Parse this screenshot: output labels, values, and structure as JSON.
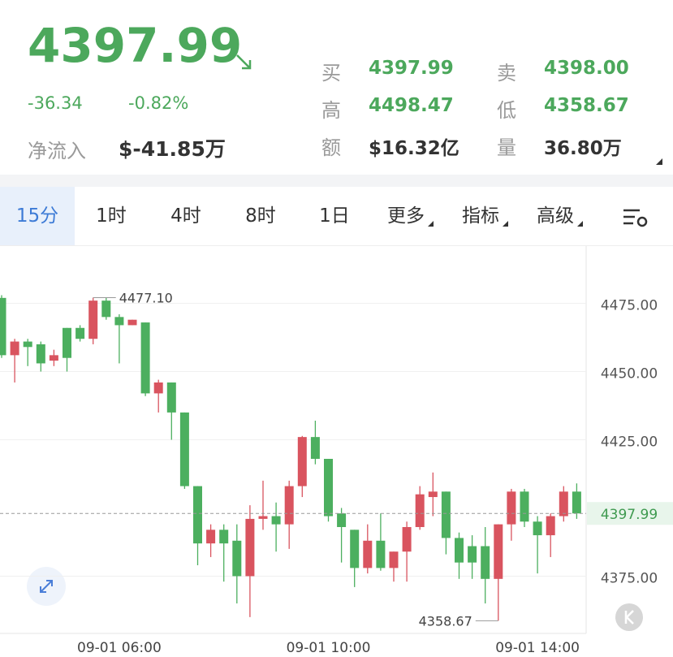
{
  "header": {
    "price": "4397.99",
    "change": "-36.34",
    "change_pct": "-0.82%",
    "net_inflow_label": "净流入",
    "net_inflow": "$-41.85万",
    "stats": [
      {
        "label": "买",
        "value": "4397.99"
      },
      {
        "label": "卖",
        "value": "4398.00"
      },
      {
        "label": "高",
        "value": "4498.47"
      },
      {
        "label": "低",
        "value": "4358.67"
      },
      {
        "label": "额",
        "value": "$16.32亿"
      },
      {
        "label": "量",
        "value": "36.80万"
      }
    ]
  },
  "tabs": [
    "15分",
    "1时",
    "4时",
    "8时",
    "1日",
    "更多",
    "指标",
    "高级"
  ],
  "chart_data": {
    "type": "candlestick",
    "categories": [
      null,
      null,
      null,
      null,
      null,
      null,
      null,
      null,
      null,
      "09-01 06:00",
      null,
      null,
      null,
      null,
      null,
      null,
      null,
      null,
      null,
      null,
      null,
      null,
      null,
      null,
      null,
      "09-01 10:00",
      null,
      null,
      null,
      null,
      null,
      null,
      null,
      null,
      null,
      null,
      null,
      null,
      null,
      null,
      null,
      "09-01 14:00",
      null,
      null,
      null
    ],
    "open": [
      4477,
      4456,
      4461,
      4460,
      4454,
      4466,
      4466,
      4462,
      4476,
      4470,
      4467,
      4468,
      4442,
      4446,
      4435,
      4408,
      4387,
      4392,
      4388,
      4375,
      4396,
      4397,
      4394,
      4408,
      4426,
      4418,
      4398,
      4392,
      4378,
      4388,
      4378,
      4384,
      4393,
      4404,
      4406,
      4389,
      4386,
      4386,
      4374,
      4394,
      4406,
      4395,
      4390,
      4397,
      4406
    ],
    "high": [
      4478,
      4462,
      4462,
      4461,
      4458,
      4466,
      4467,
      4477.1,
      4477,
      4471,
      4469,
      4468,
      4447,
      4446,
      4435,
      4408,
      4394,
      4394,
      4394,
      4401,
      4410,
      4402,
      4410,
      4426.4,
      4432,
      4418,
      4400,
      4392,
      4394,
      4398,
      4384,
      4395,
      4408,
      4413,
      4406,
      4391,
      4390,
      4393,
      4394,
      4407,
      4407,
      4397,
      4398,
      4408,
      4409
    ],
    "low": [
      4455,
      4446,
      4452,
      4450,
      4452,
      4450,
      4461,
      4460,
      4469,
      4453,
      4467,
      4441,
      4435,
      4425,
      4407,
      4379,
      4382,
      4373,
      4365,
      4360,
      4392,
      4384,
      4385,
      4404,
      4416,
      4395,
      4380,
      4371,
      4376,
      4377,
      4373,
      4373,
      4392,
      4397,
      4383,
      4374,
      4374,
      4365,
      4358.67,
      4388,
      4393,
      4376,
      4382,
      4395,
      4396
    ],
    "close": [
      4456,
      4461,
      4459,
      4453,
      4456,
      4455,
      4462,
      4476,
      4470,
      4467,
      4469,
      4442,
      4446,
      4435,
      4408,
      4387,
      4392,
      4387,
      4375,
      4396,
      4397,
      4394,
      4408,
      4426,
      4418,
      4397,
      4393,
      4378,
      4388,
      4378,
      4384,
      4393,
      4405,
      4406,
      4389,
      4380,
      4380,
      4374,
      4394,
      4406,
      4395,
      4390,
      4397,
      4406,
      4397.99
    ],
    "up_color": "#d9545f",
    "down_color": "#4caf5f",
    "ylim": [
      4354,
      4496
    ],
    "yticks": [
      {
        "value": 4375,
        "label": "4375.00"
      },
      {
        "value": 4425,
        "label": "4425.00"
      },
      {
        "value": 4450,
        "label": "4450.00"
      },
      {
        "value": 4475,
        "label": "4475.00"
      }
    ],
    "grid": true,
    "last_price": 4397.99,
    "annotations": [
      {
        "value": 4477.1,
        "label": "4477.10",
        "index": 7
      },
      {
        "value": 4358.67,
        "label": "4358.67",
        "index": 38
      }
    ]
  }
}
